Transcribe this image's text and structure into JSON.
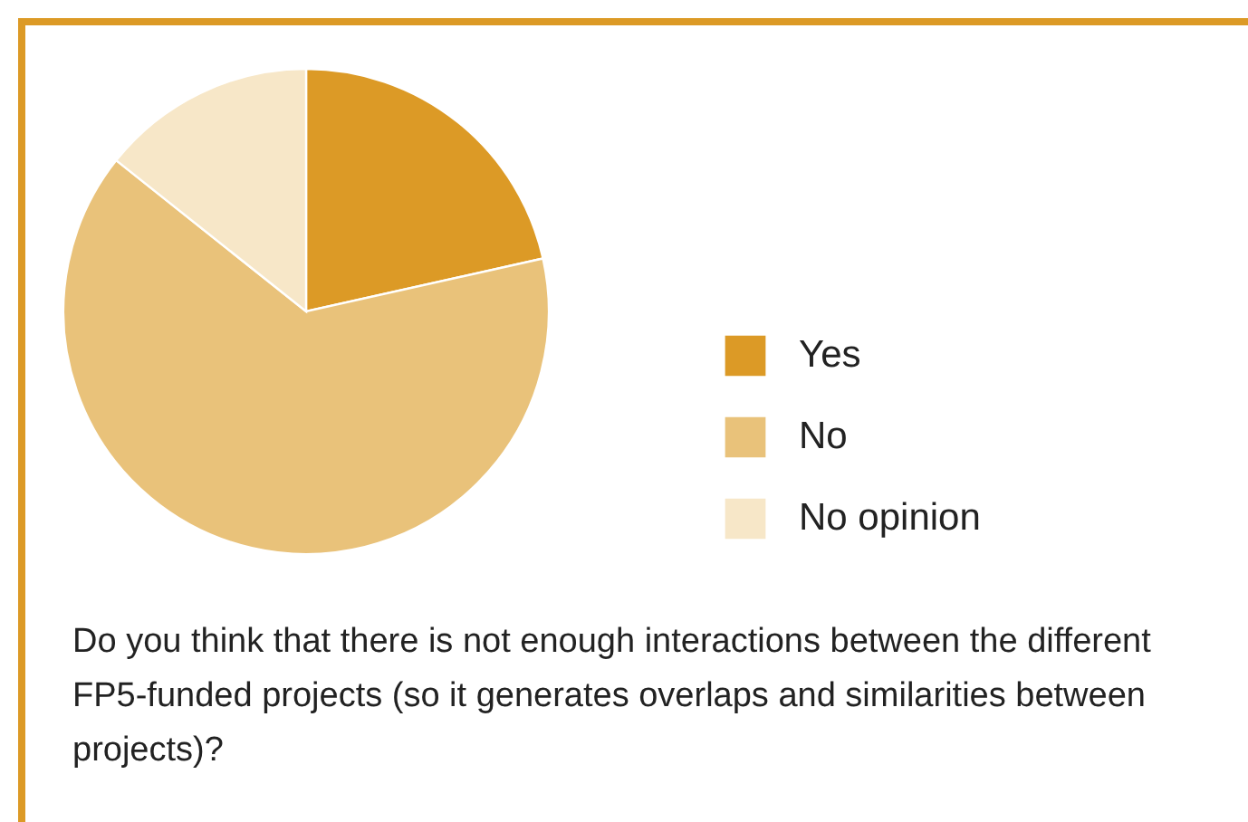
{
  "chart_data": {
    "type": "pie",
    "title": "Do you think that there is not enough interactions between the different FP5-funded projects (so it generates overlaps and similarities between projects)?",
    "categories": [
      "Yes",
      "No",
      "No opinion"
    ],
    "values": [
      21.5,
      64.2,
      14.3
    ],
    "colors": [
      "#dc9a26",
      "#e9c27a",
      "#f7e7c8"
    ],
    "legend": "right"
  }
}
